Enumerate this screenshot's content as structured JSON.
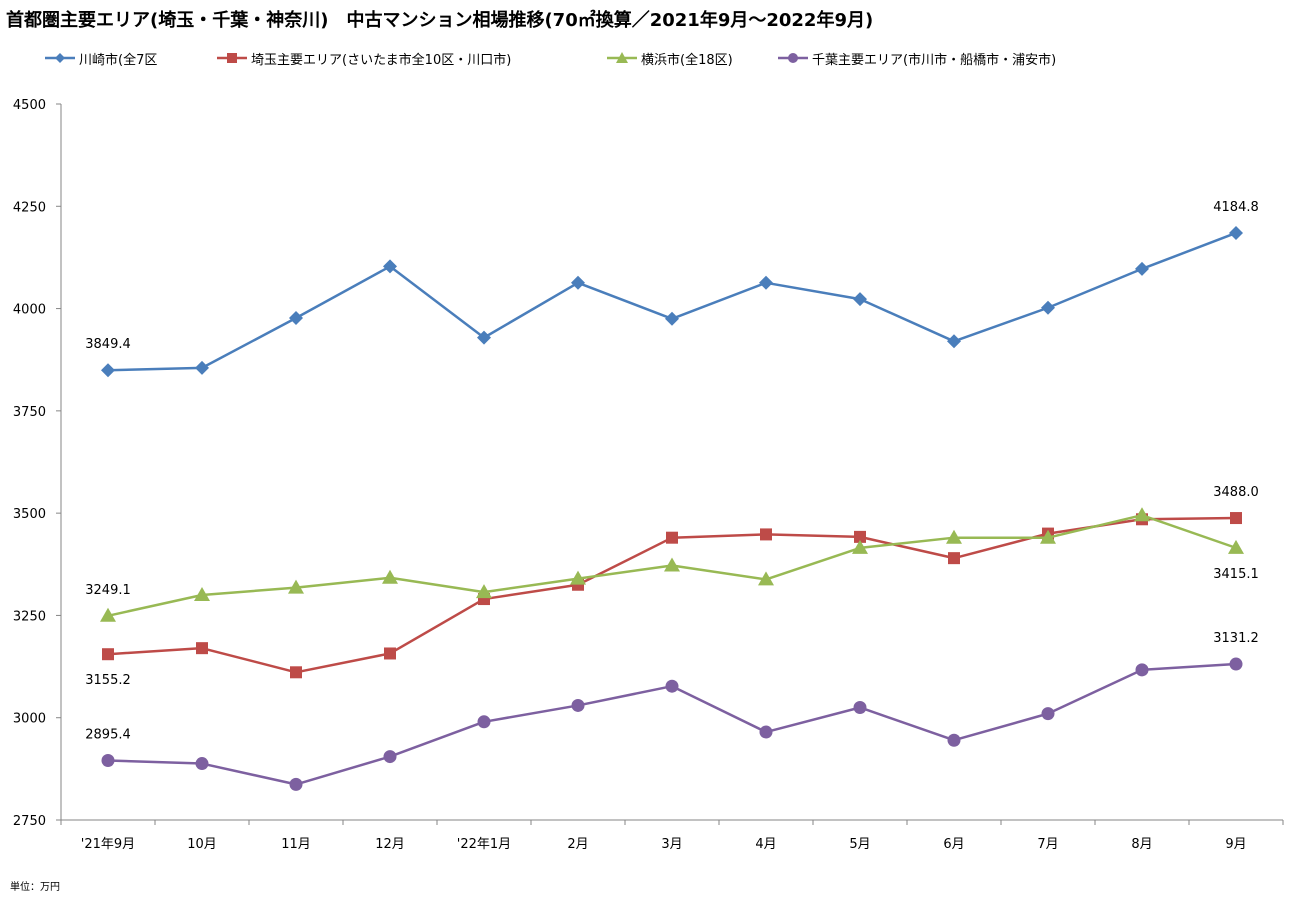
{
  "title": "首都圏主要エリア(埼玉・千葉・神奈川)　中古マンション相場推移(70㎡換算／2021年9月～2022年9月)",
  "unit_note": "単位：万円",
  "chart_data": {
    "type": "line",
    "categories": [
      "'21年9月",
      "10月",
      "11月",
      "12月",
      "'22年1月",
      "2月",
      "3月",
      "4月",
      "5月",
      "6月",
      "7月",
      "8月",
      "9月"
    ],
    "ylim": [
      2750,
      4500
    ],
    "yticks": [
      2750,
      3000,
      3250,
      3500,
      3750,
      4000,
      4250,
      4500
    ],
    "grid": false,
    "legend_position": "top",
    "series": [
      {
        "name": "川崎市(全7区",
        "color": "#4a7ebb",
        "marker": "diamond",
        "values": [
          3849.4,
          3855,
          3977,
          4103,
          3929,
          4063,
          3975,
          4063,
          4023,
          3920,
          4002,
          4097,
          4184.8
        ],
        "labels": [
          {
            "index": 0,
            "text": "3849.4",
            "pos": "above"
          },
          {
            "index": 12,
            "text": "4184.8",
            "pos": "above"
          }
        ]
      },
      {
        "name": "埼玉主要エリア(さいたま市全10区・川口市)",
        "color": "#be4b48",
        "marker": "square",
        "values": [
          3155.2,
          3170,
          3111,
          3157,
          3290,
          3325,
          3440,
          3448,
          3442,
          3390,
          3450,
          3485,
          3488.0
        ],
        "labels": [
          {
            "index": 0,
            "text": "3155.2",
            "pos": "below"
          },
          {
            "index": 12,
            "text": "3488.0",
            "pos": "above"
          }
        ]
      },
      {
        "name": "横浜市(全18区)",
        "color": "#98b954",
        "marker": "triangle",
        "values": [
          3249.1,
          3300,
          3318,
          3342,
          3307,
          3340,
          3372,
          3338,
          3415,
          3440,
          3440,
          3495,
          3415.1
        ],
        "labels": [
          {
            "index": 0,
            "text": "3249.1",
            "pos": "above"
          },
          {
            "index": 12,
            "text": "3415.1",
            "pos": "below"
          }
        ]
      },
      {
        "name": "千葉主要エリア(市川市・船橋市・浦安市)",
        "color": "#7d60a0",
        "marker": "circle",
        "values": [
          2895.4,
          2888,
          2837,
          2905,
          2990,
          3030,
          3077,
          2965,
          3025,
          2945,
          3010,
          3117,
          3131.2
        ],
        "labels": [
          {
            "index": 0,
            "text": "2895.4",
            "pos": "above"
          },
          {
            "index": 12,
            "text": "3131.2",
            "pos": "above"
          }
        ]
      }
    ]
  }
}
